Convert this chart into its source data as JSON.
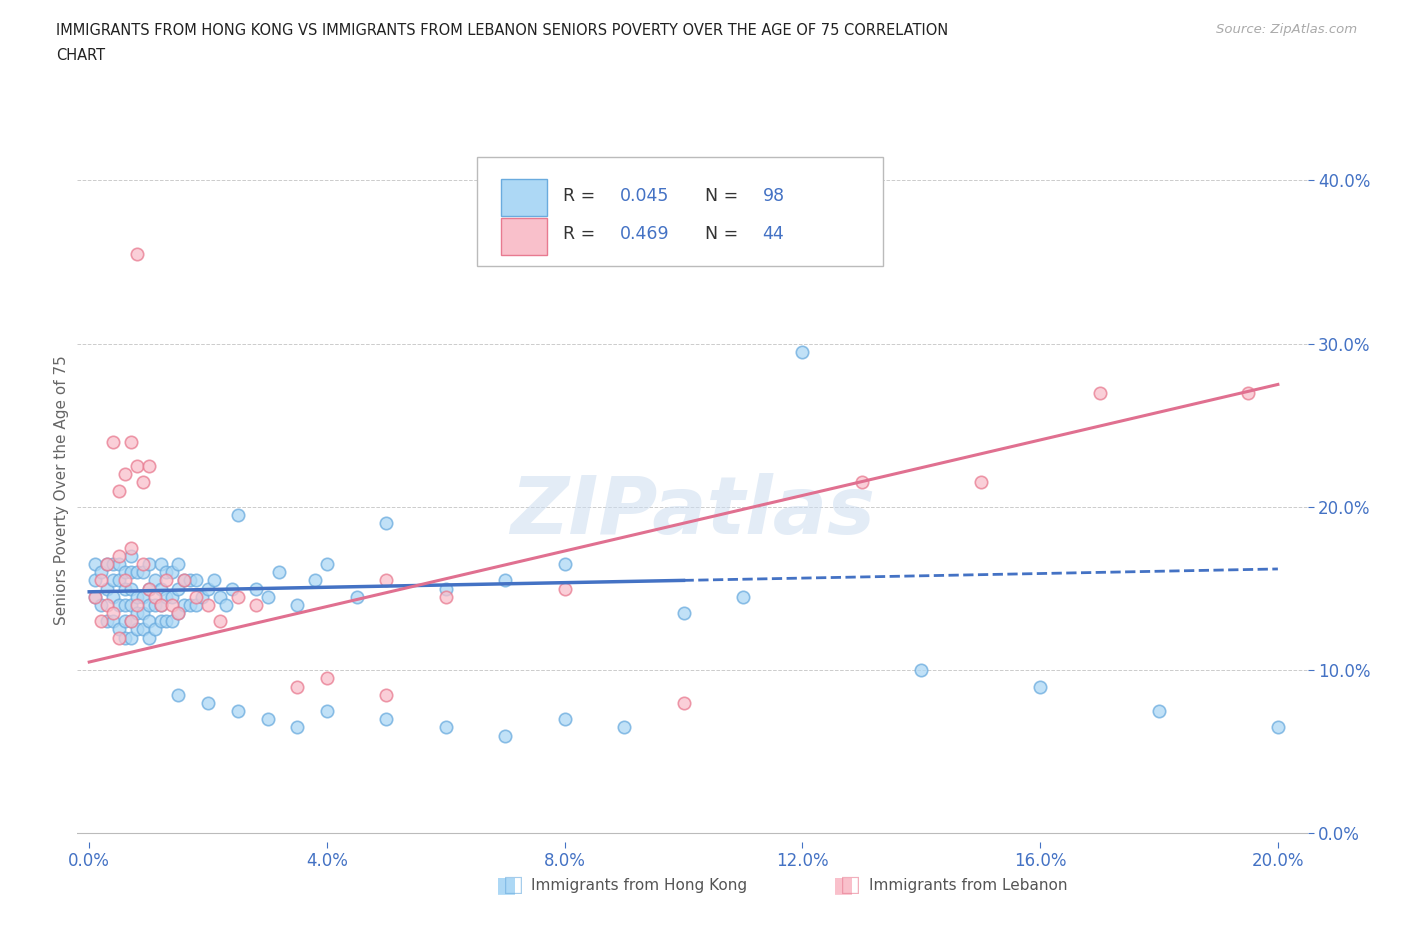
{
  "title_line1": "IMMIGRANTS FROM HONG KONG VS IMMIGRANTS FROM LEBANON SENIORS POVERTY OVER THE AGE OF 75 CORRELATION",
  "title_line2": "CHART",
  "source": "Source: ZipAtlas.com",
  "ylabel": "Seniors Poverty Over the Age of 75",
  "xlim": [
    -0.002,
    0.205
  ],
  "ylim": [
    -0.005,
    0.425
  ],
  "ytick_vals": [
    0.0,
    0.1,
    0.2,
    0.3,
    0.4
  ],
  "xtick_vals": [
    0.0,
    0.04,
    0.08,
    0.12,
    0.16,
    0.2
  ],
  "hk_face_color": "#add8f5",
  "hk_edge_color": "#6aabde",
  "lb_face_color": "#f9c0cb",
  "lb_edge_color": "#e87a90",
  "hk_line_color": "#4472c4",
  "lb_line_color": "#e07090",
  "legend_text_color": "#333333",
  "legend_value_color": "#4472c4",
  "hk_R": "0.045",
  "hk_N": "98",
  "lb_R": "0.469",
  "lb_N": "44",
  "hk_scatter_x": [
    0.001,
    0.001,
    0.001,
    0.002,
    0.002,
    0.003,
    0.003,
    0.003,
    0.004,
    0.004,
    0.004,
    0.004,
    0.005,
    0.005,
    0.005,
    0.005,
    0.006,
    0.006,
    0.006,
    0.006,
    0.006,
    0.007,
    0.007,
    0.007,
    0.007,
    0.007,
    0.007,
    0.008,
    0.008,
    0.008,
    0.008,
    0.009,
    0.009,
    0.009,
    0.009,
    0.01,
    0.01,
    0.01,
    0.01,
    0.01,
    0.011,
    0.011,
    0.011,
    0.012,
    0.012,
    0.012,
    0.012,
    0.013,
    0.013,
    0.013,
    0.014,
    0.014,
    0.014,
    0.015,
    0.015,
    0.015,
    0.016,
    0.016,
    0.017,
    0.017,
    0.018,
    0.018,
    0.019,
    0.02,
    0.021,
    0.022,
    0.023,
    0.024,
    0.025,
    0.028,
    0.03,
    0.032,
    0.035,
    0.038,
    0.04,
    0.045,
    0.05,
    0.06,
    0.07,
    0.08,
    0.1,
    0.11,
    0.12,
    0.14,
    0.16,
    0.18,
    0.2,
    0.015,
    0.02,
    0.025,
    0.03,
    0.035,
    0.04,
    0.05,
    0.06,
    0.07,
    0.08,
    0.09
  ],
  "hk_scatter_y": [
    0.145,
    0.155,
    0.165,
    0.14,
    0.16,
    0.13,
    0.15,
    0.165,
    0.13,
    0.145,
    0.155,
    0.165,
    0.125,
    0.14,
    0.155,
    0.165,
    0.12,
    0.13,
    0.14,
    0.15,
    0.16,
    0.12,
    0.13,
    0.14,
    0.15,
    0.16,
    0.17,
    0.125,
    0.135,
    0.145,
    0.16,
    0.125,
    0.135,
    0.145,
    0.16,
    0.12,
    0.13,
    0.14,
    0.15,
    0.165,
    0.125,
    0.14,
    0.155,
    0.13,
    0.14,
    0.15,
    0.165,
    0.13,
    0.145,
    0.16,
    0.13,
    0.145,
    0.16,
    0.135,
    0.15,
    0.165,
    0.14,
    0.155,
    0.14,
    0.155,
    0.14,
    0.155,
    0.145,
    0.15,
    0.155,
    0.145,
    0.14,
    0.15,
    0.195,
    0.15,
    0.145,
    0.16,
    0.14,
    0.155,
    0.165,
    0.145,
    0.19,
    0.15,
    0.155,
    0.165,
    0.135,
    0.145,
    0.295,
    0.1,
    0.09,
    0.075,
    0.065,
    0.085,
    0.08,
    0.075,
    0.07,
    0.065,
    0.075,
    0.07,
    0.065,
    0.06,
    0.07,
    0.065
  ],
  "lb_scatter_x": [
    0.001,
    0.002,
    0.002,
    0.003,
    0.003,
    0.004,
    0.004,
    0.005,
    0.005,
    0.005,
    0.006,
    0.006,
    0.007,
    0.007,
    0.007,
    0.008,
    0.008,
    0.009,
    0.009,
    0.01,
    0.01,
    0.011,
    0.012,
    0.013,
    0.014,
    0.015,
    0.016,
    0.018,
    0.02,
    0.022,
    0.025,
    0.028,
    0.035,
    0.04,
    0.05,
    0.06,
    0.08,
    0.1,
    0.13,
    0.15,
    0.17,
    0.195,
    0.008,
    0.05
  ],
  "lb_scatter_y": [
    0.145,
    0.13,
    0.155,
    0.14,
    0.165,
    0.135,
    0.24,
    0.12,
    0.17,
    0.21,
    0.155,
    0.22,
    0.13,
    0.175,
    0.24,
    0.14,
    0.225,
    0.165,
    0.215,
    0.15,
    0.225,
    0.145,
    0.14,
    0.155,
    0.14,
    0.135,
    0.155,
    0.145,
    0.14,
    0.13,
    0.145,
    0.14,
    0.09,
    0.095,
    0.155,
    0.145,
    0.15,
    0.08,
    0.215,
    0.215,
    0.27,
    0.27,
    0.355,
    0.085
  ],
  "watermark": "ZIPatlas",
  "bg_color": "#ffffff",
  "grid_color": "#cccccc",
  "axis_color": "#4472c4",
  "ylabel_color": "#666666",
  "hk_trendline": [
    0.0,
    0.148,
    0.1,
    0.155
  ],
  "hk_trendline_dash": [
    0.1,
    0.155,
    0.2,
    0.162
  ],
  "lb_trendline": [
    0.0,
    0.105,
    0.2,
    0.275
  ]
}
